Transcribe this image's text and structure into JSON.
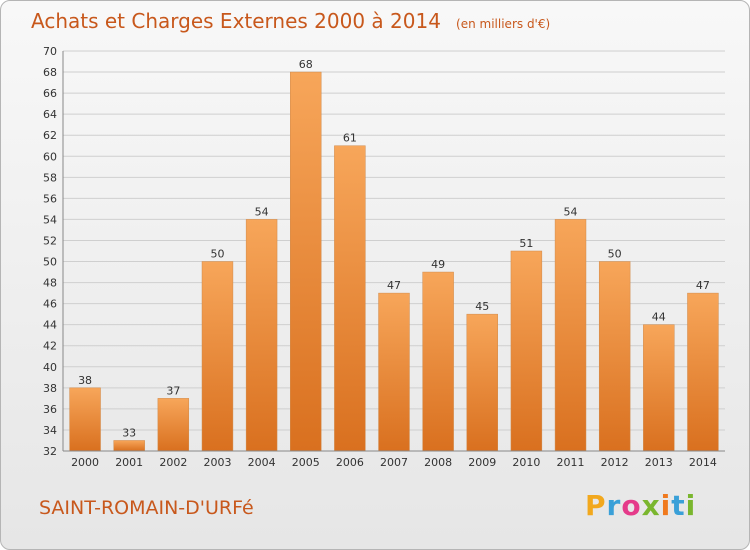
{
  "header": {
    "title": "Achats et Charges Externes 2000 à 2014",
    "unit": "(en milliers d'€)"
  },
  "commune": "SAINT-ROMAIN-D'URFé",
  "brand": {
    "text": "Proxiti",
    "colors": [
      "#f2a81d",
      "#3aa0d8",
      "#e53b8a",
      "#7ab62e",
      "#f07a1e"
    ]
  },
  "chart_data": {
    "type": "bar",
    "title": "Achats et Charges Externes 2000 à 2014",
    "subtitle": "(en milliers d'€)",
    "categories": [
      "2000",
      "2001",
      "2002",
      "2003",
      "2004",
      "2005",
      "2006",
      "2007",
      "2008",
      "2009",
      "2010",
      "2011",
      "2012",
      "2013",
      "2014"
    ],
    "values": [
      38,
      33,
      37,
      50,
      54,
      68,
      61,
      47,
      49,
      45,
      51,
      54,
      50,
      44,
      47
    ],
    "ylim": [
      32,
      70
    ],
    "yticks": [
      32,
      34,
      36,
      38,
      40,
      42,
      44,
      46,
      48,
      50,
      52,
      54,
      56,
      58,
      60,
      62,
      64,
      66,
      68,
      70
    ],
    "grid": true,
    "data_labels": true,
    "bar_colors": {
      "top": "#f7a65a",
      "bottom": "#d9701f"
    },
    "grid_color": "#cfcfcf",
    "text_color": "#333333"
  }
}
